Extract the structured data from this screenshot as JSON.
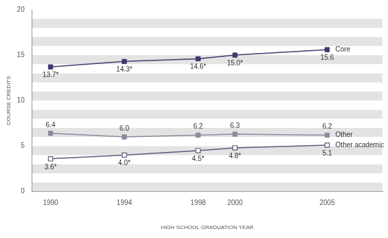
{
  "chart_data": {
    "type": "line",
    "x": [
      1990,
      1994,
      1998,
      2000,
      2005
    ],
    "xlabel": "HIGH SCHOOL GRADUATION YEAR",
    "ylabel": "COURSE CREDITS",
    "xlim": [
      1989,
      2008
    ],
    "xticks": [
      1990,
      1994,
      1998,
      2000,
      2005
    ],
    "ylim": [
      0,
      20
    ],
    "yticks": [
      0,
      5,
      10,
      15,
      20
    ],
    "data_labels": true,
    "series": [
      {
        "name": "Core",
        "color": "#3d3a6e",
        "marker": "square",
        "values": [
          13.7,
          14.3,
          14.6,
          15.0,
          15.6
        ],
        "value_labels": [
          "13.7*",
          "14.3*",
          "14.6*",
          "15.0*",
          "15.6"
        ]
      },
      {
        "name": "Other",
        "color": "#8b8a9e",
        "marker": "square",
        "values": [
          6.4,
          6.0,
          6.2,
          6.3,
          6.2
        ],
        "value_labels": [
          "6.4",
          "6.0",
          "6.2",
          "6.3",
          "6.2"
        ]
      },
      {
        "name": "Other academic",
        "color": "#5c5a78",
        "marker": "square-open",
        "values": [
          3.6,
          4.0,
          4.5,
          4.8,
          5.1
        ],
        "value_labels": [
          "3.6*",
          "4.0*",
          "4.5*",
          "4.8*",
          "5.1"
        ]
      }
    ]
  }
}
